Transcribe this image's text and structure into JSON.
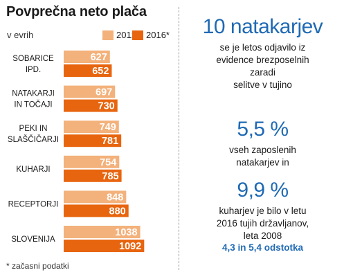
{
  "header": {
    "title": "Povprečna neto plača",
    "subtitle": "v evrih"
  },
  "colors": {
    "c2012": "#f3b17b",
    "c2016": "#e8650f",
    "accent": "#1f6ab4"
  },
  "footnote": "* začasni podatki",
  "chart_data": {
    "type": "bar",
    "title": "Povprečna neto plača",
    "subtitle": "v evrih",
    "categories": [
      [
        "SOBARICE",
        "IPD."
      ],
      [
        "NATAKARJI",
        "IN TOČAJI"
      ],
      [
        "PEKI IN",
        "SLAŠČIČARJI"
      ],
      [
        "KUHARJI"
      ],
      [
        "RECEPTORJI"
      ],
      [
        "SLOVENIJA"
      ]
    ],
    "series": [
      {
        "name": "2012",
        "values": [
          627,
          697,
          749,
          754,
          848,
          1038
        ]
      },
      {
        "name": "2016*",
        "values": [
          652,
          730,
          781,
          785,
          880,
          1092
        ]
      }
    ],
    "legend_position": "top-right",
    "grid": false
  },
  "facts": [
    {
      "big": "10 natakarjev",
      "text": [
        "se je letos odjavilo iz",
        "evidence brezposelnih",
        "zaradi",
        "selitve v tujino"
      ]
    },
    {
      "big": "5,5 %",
      "text": [
        "vseh zaposlenih",
        "natakarjev in"
      ]
    },
    {
      "big": "9,9 %",
      "text": [
        "kuharjev je bilo v letu",
        "2016 tujih državljanov,",
        "leta 2008"
      ],
      "accent": "4,3 in 5,4 odstotka"
    }
  ]
}
